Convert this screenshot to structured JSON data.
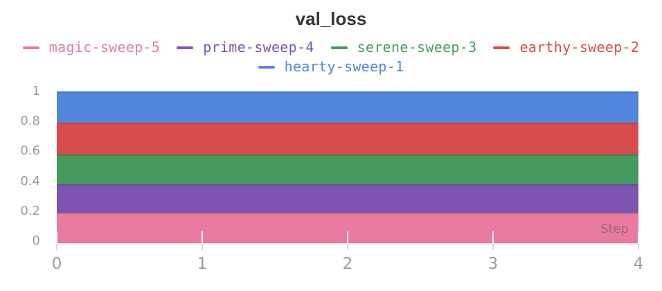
{
  "title": "val_loss",
  "chart_data": {
    "type": "area",
    "title": "val_loss",
    "xlabel": "Step",
    "ylabel": "",
    "x": [
      0,
      1,
      2,
      3,
      4
    ],
    "xticks": [
      "0",
      "1",
      "2",
      "3",
      "4"
    ],
    "yticks": [
      "1",
      "0.8",
      "0.6",
      "0.4",
      "0.2",
      "0"
    ],
    "ytick_values": [
      1,
      0.8,
      0.6,
      0.4,
      0.2,
      0
    ],
    "xlim": [
      0,
      4
    ],
    "ylim": [
      0,
      1
    ],
    "grid": false,
    "legend_position": "top",
    "legend_order": [
      "magic-sweep-5",
      "prime-sweep-4",
      "serene-sweep-3",
      "earthy-sweep-2",
      "hearty-sweep-1"
    ],
    "series": [
      {
        "name": "magic-sweep-5",
        "color": "#E87B9F",
        "values": [
          0.19,
          0.19,
          0.19,
          0.19,
          0.19
        ]
      },
      {
        "name": "prime-sweep-4",
        "color": "#7D54B2",
        "values": [
          0.38,
          0.38,
          0.38,
          0.38,
          0.38
        ]
      },
      {
        "name": "serene-sweep-3",
        "color": "#479A5F",
        "values": [
          0.58,
          0.58,
          0.58,
          0.58,
          0.58
        ]
      },
      {
        "name": "earthy-sweep-2",
        "color": "#D64C4C",
        "values": [
          0.79,
          0.79,
          0.79,
          0.79,
          0.79
        ]
      },
      {
        "name": "hearty-sweep-1",
        "color": "#5387DD",
        "values": [
          1.0,
          1.0,
          1.0,
          1.0,
          1.0
        ]
      }
    ]
  },
  "colors": {
    "title_text": "#363636",
    "tick_label": "#9b9b9b",
    "axis_line": "#e7e7eb"
  }
}
